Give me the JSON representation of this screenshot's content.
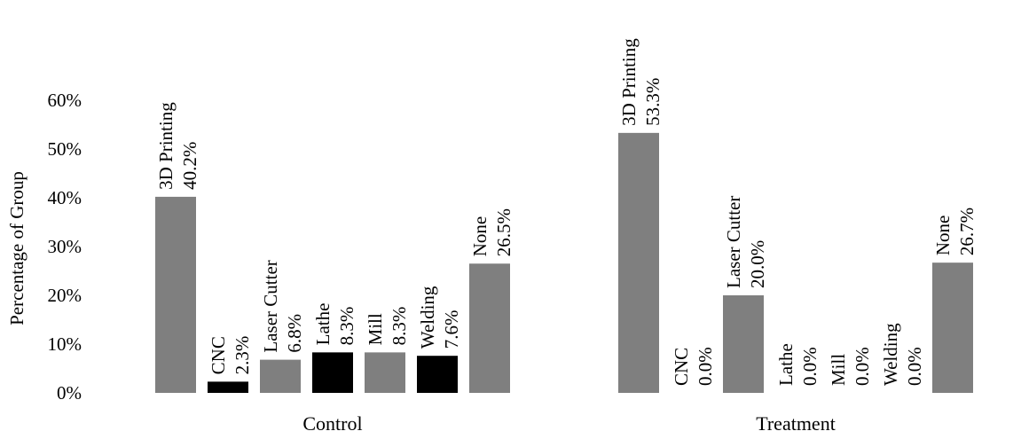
{
  "chart_data": {
    "type": "bar",
    "title": "",
    "xlabel": "",
    "ylabel": "Percentage of Group",
    "ylim": [
      0,
      60
    ],
    "ytick_labels": [
      "0%",
      "10%",
      "20%",
      "30%",
      "40%",
      "50%",
      "60%"
    ],
    "grid": false,
    "legend": "none",
    "groups": [
      "Control",
      "Treatment"
    ],
    "items": [
      "3D Printing",
      "CNC",
      "Laser Cutter",
      "Lathe",
      "Mill",
      "Welding",
      "None"
    ],
    "series": [
      {
        "group": "Control",
        "values": [
          40.2,
          2.3,
          6.8,
          8.3,
          8.3,
          7.6,
          26.5
        ],
        "value_labels": [
          "40.2%",
          "2.3%",
          "6.8%",
          "8.3%",
          "8.3%",
          "7.6%",
          "26.5%"
        ]
      },
      {
        "group": "Treatment",
        "values": [
          53.3,
          0.0,
          20.0,
          0.0,
          0.0,
          0.0,
          26.7
        ],
        "value_labels": [
          "53.3%",
          "0.0%",
          "20.0%",
          "0.0%",
          "0.0%",
          "0.0%",
          "26.7%"
        ]
      }
    ],
    "bar_colors": [
      "#7f7f7f",
      "#000000",
      "#7f7f7f",
      "#000000",
      "#7f7f7f",
      "#000000",
      "#7f7f7f"
    ]
  }
}
